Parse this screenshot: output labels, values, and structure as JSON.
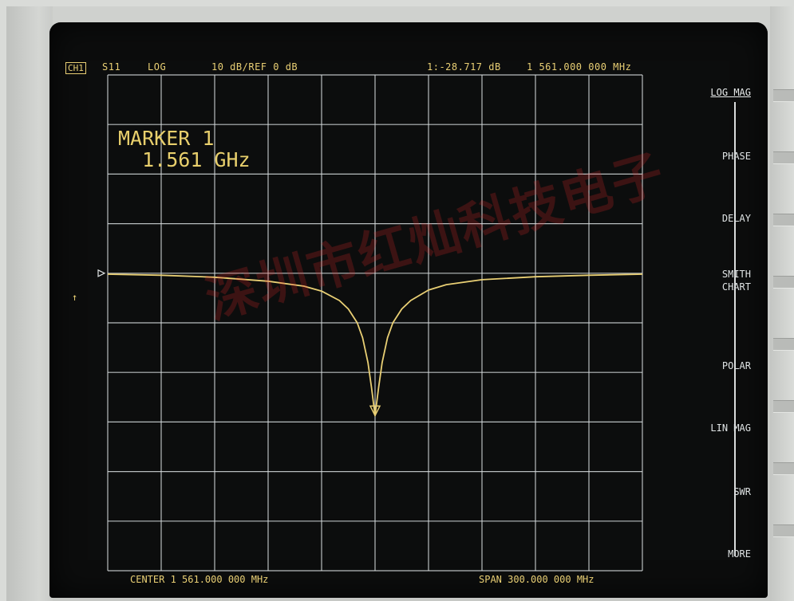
{
  "header": {
    "channel": "CH1",
    "parameter": "S11",
    "format": "LOG",
    "scale": "10 dB/REF 0 dB",
    "marker_readout": "1:-28.717 dB",
    "marker_freq": "1 561.000 000 MHz"
  },
  "marker_box": {
    "line1": "MARKER 1",
    "line2": "1.561 GHz"
  },
  "softkeys": [
    {
      "label": "LOG MAG"
    },
    {
      "label": "PHASE"
    },
    {
      "label": "DELAY"
    },
    {
      "label": "SMITH\nCHART"
    },
    {
      "label": "POLAR"
    },
    {
      "label": "LIN MAG"
    },
    {
      "label": "SWR"
    },
    {
      "label": "MORE"
    }
  ],
  "footer": {
    "center": "CENTER 1 561.000 000 MHz",
    "span": "SPAN 300.000 000 MHz"
  },
  "watermark": "深圳市红灿科技电子",
  "colors": {
    "trace": "#e9cf74",
    "grid": "#d7dcdd",
    "screen_bg": "#0c0d0d"
  },
  "chart_data": {
    "type": "line",
    "x_unit": "MHz",
    "y_unit": "dB",
    "xlim": [
      1411,
      1711
    ],
    "ylim": [
      -60,
      40
    ],
    "reference_level_db": 0,
    "scale_db_per_div": 10,
    "x_divisions": 10,
    "y_divisions": 10,
    "grid": true,
    "series": [
      {
        "x": [
          1411,
          1441,
          1471,
          1501,
          1521,
          1531,
          1541,
          1546,
          1551,
          1554,
          1557,
          1559,
          1561,
          1563,
          1565,
          1568,
          1571,
          1576,
          1581,
          1591,
          1601,
          1621,
          1651,
          1681,
          1711
        ],
        "values": [
          -0.2,
          -0.4,
          -0.8,
          -1.6,
          -2.6,
          -3.6,
          -5.5,
          -7.2,
          -10,
          -13,
          -18,
          -23,
          -28.7,
          -23,
          -18,
          -13,
          -10,
          -7.2,
          -5.5,
          -3.4,
          -2.3,
          -1.3,
          -0.7,
          -0.4,
          -0.2
        ]
      }
    ],
    "markers": [
      {
        "id": 1,
        "x": 1561,
        "y": -28.717
      }
    ]
  }
}
